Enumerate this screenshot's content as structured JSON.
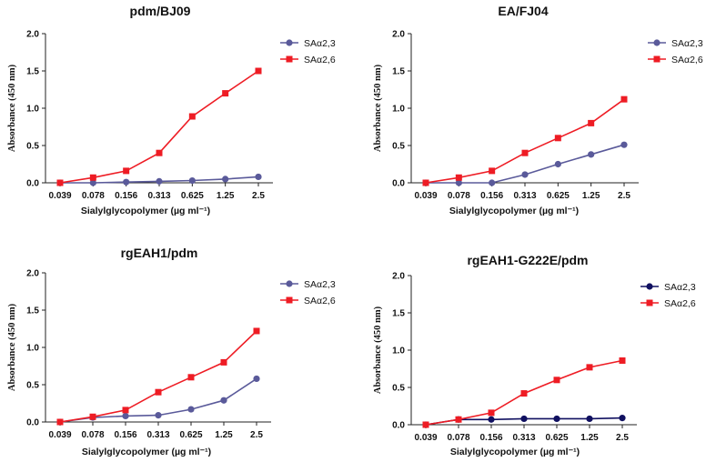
{
  "chart_data": [
    {
      "type": "line",
      "title": "pdm/BJ09",
      "xlabel": "Sialylglycopolymer (µg ml⁻¹)",
      "ylabel": "Absorbance (450 nm)",
      "categories": [
        "0.039",
        "0.078",
        "0.156",
        "0.313",
        "0.625",
        "1.25",
        "2.5"
      ],
      "ylim": [
        0,
        2.0
      ],
      "yticks": [
        "0.0",
        "0.5",
        "1.0",
        "1.5",
        "2.0"
      ],
      "legend_position": "top-right",
      "series": [
        {
          "name": "SAα2,3",
          "color": "#5a5a9a",
          "marker": "circle",
          "values": [
            0.0,
            0.0,
            0.01,
            0.02,
            0.03,
            0.05,
            0.08
          ]
        },
        {
          "name": "SAα2,6",
          "color": "#ee1c24",
          "marker": "square",
          "values": [
            0.0,
            0.07,
            0.16,
            0.4,
            0.89,
            1.2,
            1.5
          ]
        }
      ]
    },
    {
      "type": "line",
      "title": "EA/FJ04",
      "xlabel": "Sialylglycopolymer (µg ml⁻¹)",
      "ylabel": "Absorbance (450 nm)",
      "categories": [
        "0.039",
        "0.078",
        "0.156",
        "0.313",
        "0.625",
        "1.25",
        "2.5"
      ],
      "ylim": [
        0,
        2.0
      ],
      "yticks": [
        "0.0",
        "0.5",
        "1.0",
        "1.5",
        "2.0"
      ],
      "legend_position": "top-right",
      "series": [
        {
          "name": "SAα2,3",
          "color": "#5a5a9a",
          "marker": "circle",
          "values": [
            0.0,
            0.0,
            0.0,
            0.11,
            0.25,
            0.38,
            0.51
          ]
        },
        {
          "name": "SAα2,6",
          "color": "#ee1c24",
          "marker": "square",
          "values": [
            0.0,
            0.07,
            0.16,
            0.4,
            0.6,
            0.8,
            1.12
          ]
        }
      ]
    },
    {
      "type": "line",
      "title": "rgEAH1/pdm",
      "xlabel": "Sialylglycopolymer (µg ml⁻¹)",
      "ylabel": "Absorbance (450 nm)",
      "categories": [
        "0.039",
        "0.078",
        "0.156",
        "0.313",
        "0.625",
        "1.25",
        "2.5"
      ],
      "ylim": [
        0,
        2.0
      ],
      "yticks": [
        "0.0",
        "0.5",
        "1.0",
        "1.5",
        "2.0"
      ],
      "legend_position": "top-right",
      "series": [
        {
          "name": "SAα2,3",
          "color": "#5a5a9a",
          "marker": "circle",
          "values": [
            0.0,
            0.06,
            0.08,
            0.09,
            0.17,
            0.29,
            0.58
          ]
        },
        {
          "name": "SAα2,6",
          "color": "#ee1c24",
          "marker": "square",
          "values": [
            0.0,
            0.07,
            0.16,
            0.4,
            0.6,
            0.8,
            1.22
          ]
        }
      ]
    },
    {
      "type": "line",
      "title": "rgEAH1-G222E/pdm",
      "xlabel": "Sialylglycopolymer (µg ml⁻¹)",
      "ylabel": "Absorbance (450 nm)",
      "categories": [
        "0.039",
        "0.078",
        "0.156",
        "0.313",
        "0.625",
        "1.25",
        "2.5"
      ],
      "ylim": [
        0,
        2.0
      ],
      "yticks": [
        "0.0",
        "0.5",
        "1.0",
        "1.5",
        "2.0"
      ],
      "legend_position": "top-right",
      "series": [
        {
          "name": "SAα2,3",
          "color": "#101060",
          "marker": "circle",
          "values": [
            0.0,
            0.07,
            0.07,
            0.08,
            0.08,
            0.08,
            0.09
          ]
        },
        {
          "name": "SAα2,6",
          "color": "#ee1c24",
          "marker": "square",
          "values": [
            0.0,
            0.07,
            0.16,
            0.42,
            0.6,
            0.77,
            0.86
          ]
        }
      ]
    }
  ]
}
